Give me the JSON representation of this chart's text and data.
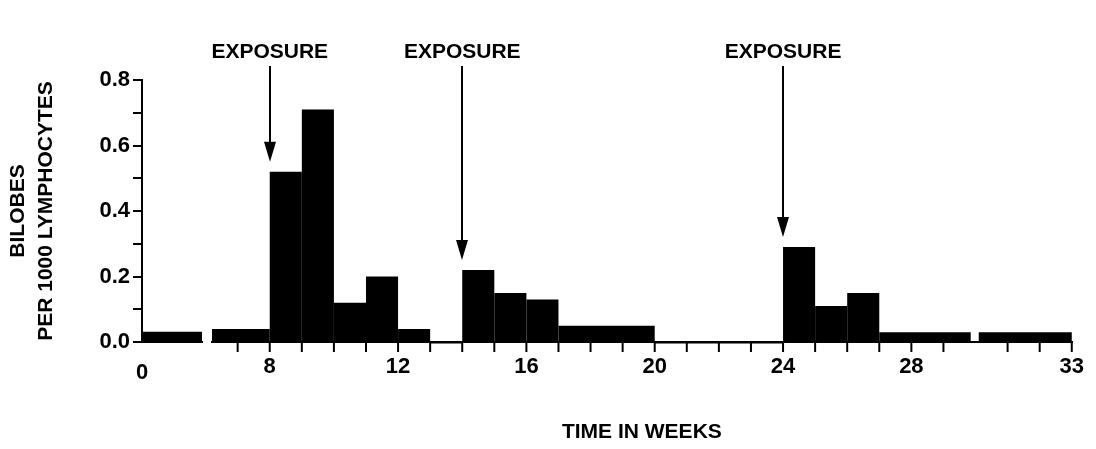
{
  "chart_data": [
    {
      "type": "bar",
      "ylabel": "BILOBES\nPER 1000 LYMPHOCYTES",
      "categories": [
        null
      ],
      "values": [
        0.03
      ],
      "color": "#000000",
      "ylim": [
        0,
        0.8
      ],
      "yticks": [
        {
          "value": 0,
          "label": "0.0"
        },
        {
          "value": 0.1,
          "label": null
        },
        0.2,
        {
          "value": 0.3,
          "label": null
        },
        0.4,
        {
          "value": 0.5,
          "label": null
        },
        0.6,
        {
          "value": 0.7,
          "label": null
        },
        0.8
      ],
      "annotations": [
        "0"
      ]
    },
    {
      "type": "histogram",
      "xlabel": "TIME IN WEEKS",
      "bins": [
        6.2,
        8,
        9,
        10,
        11,
        12,
        13,
        14,
        15,
        16,
        17,
        20,
        24,
        25,
        26,
        27,
        29.85,
        30.1,
        33
      ],
      "values": [
        0.04,
        0.52,
        0.71,
        0.12,
        0.2,
        0.04,
        0,
        0.22,
        0.15,
        0.13,
        0.05,
        0,
        0.29,
        0.11,
        0.15,
        0.03,
        null,
        0.03
      ],
      "color": "#000000",
      "xlim": [
        6.2,
        33
      ],
      "xticks": [
        {
          "value": 7,
          "label": null
        },
        8,
        {
          "value": 9,
          "label": null
        },
        {
          "value": 10,
          "label": null
        },
        {
          "value": 11,
          "label": null
        },
        12,
        {
          "value": 13,
          "label": null
        },
        {
          "value": 14,
          "label": null
        },
        {
          "value": 15,
          "label": null
        },
        16,
        {
          "value": 17,
          "label": null
        },
        {
          "value": 18,
          "label": null
        },
        {
          "value": 19,
          "label": null
        },
        20,
        {
          "value": 21,
          "label": null
        },
        {
          "value": 22,
          "label": null
        },
        {
          "value": 23,
          "label": null
        },
        24,
        {
          "value": 25,
          "label": null
        },
        {
          "value": 26,
          "label": null
        },
        {
          "value": 27,
          "label": null
        },
        28,
        {
          "value": 29,
          "label": null
        },
        {
          "value": 31,
          "label": null
        },
        {
          "value": 32,
          "label": null
        },
        33
      ],
      "ylim": [
        0,
        0.8
      ],
      "tick_labels": "x",
      "ref_lines": [
        {
          "axis": "x",
          "value": 8,
          "label": "EXPOSURE"
        },
        {
          "axis": "x",
          "value": 14,
          "label": "EXPOSURE"
        },
        {
          "axis": "x",
          "value": 24,
          "label": "EXPOSURE"
        }
      ]
    }
  ]
}
